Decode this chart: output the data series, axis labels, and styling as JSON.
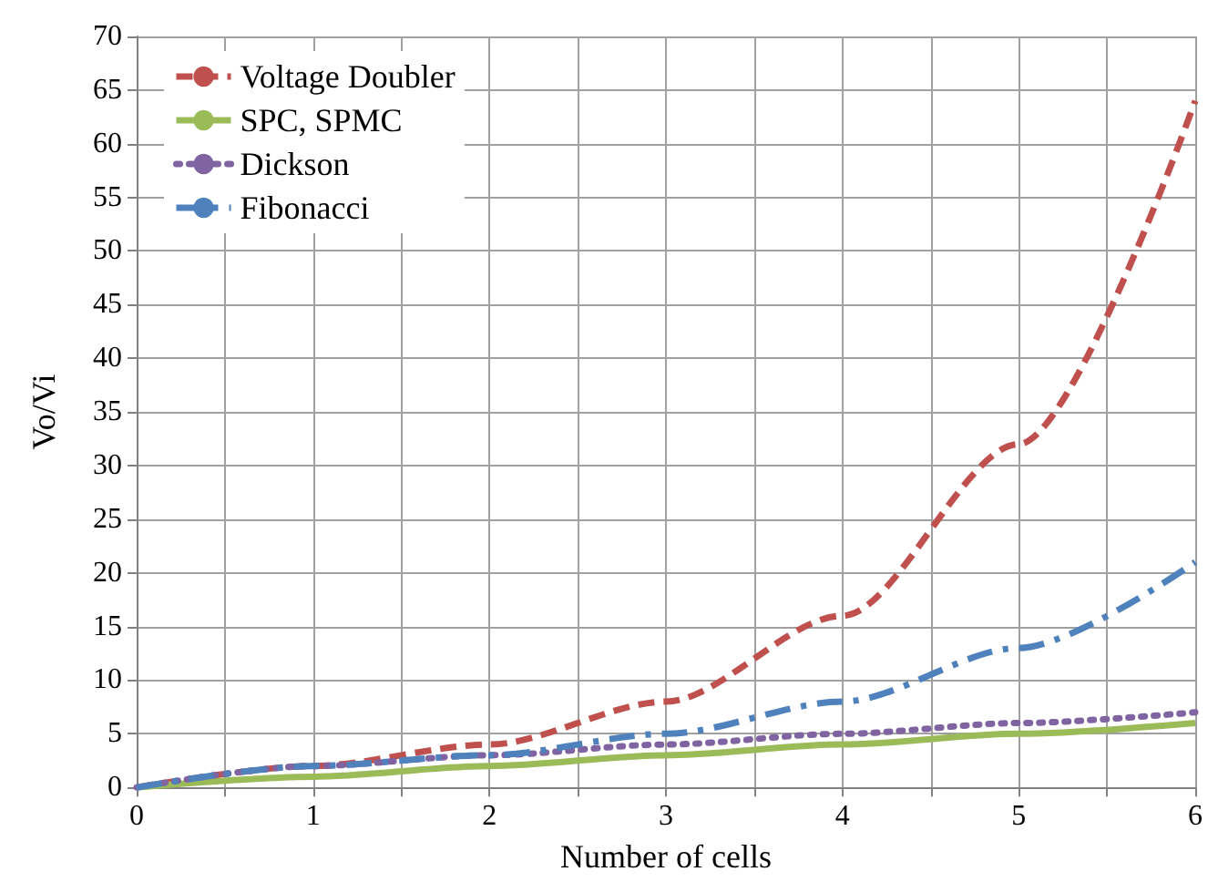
{
  "chart_data": {
    "type": "line",
    "xlabel": "Number of cells",
    "ylabel": "Vo/Vi",
    "x": [
      0,
      1,
      2,
      3,
      4,
      5,
      6
    ],
    "series": [
      {
        "name": "Voltage Doubler",
        "color": "#c0504d",
        "line_style": "dashed",
        "values": [
          0,
          2,
          4,
          8,
          16,
          32,
          64
        ]
      },
      {
        "name": "SPC, SPMC",
        "color": "#9bbb59",
        "line_style": "solid",
        "values": [
          0,
          1,
          2,
          3,
          4,
          5,
          6
        ]
      },
      {
        "name": "Dickson",
        "color": "#8064a2",
        "line_style": "dotted",
        "values": [
          0,
          2,
          3,
          4,
          5,
          6,
          7
        ]
      },
      {
        "name": "Fibonacci",
        "color": "#4f81bd",
        "line_style": "dashdot",
        "values": [
          0,
          2,
          3,
          5,
          8,
          13,
          21
        ]
      }
    ],
    "xlim": [
      0,
      6
    ],
    "xticks": [
      0,
      {
        "value": 0.5,
        "label": null
      },
      1,
      {
        "value": 1.5,
        "label": null
      },
      2,
      {
        "value": 2.5,
        "label": null
      },
      3,
      {
        "value": 3.5,
        "label": null
      },
      4,
      {
        "value": 4.5,
        "label": null
      },
      5,
      {
        "value": 5.5,
        "label": null
      },
      6
    ],
    "ylim": [
      0,
      70
    ],
    "yticks": [
      0,
      5,
      10,
      15,
      20,
      25,
      30,
      35,
      40,
      45,
      50,
      55,
      60,
      65,
      70
    ],
    "grid": true,
    "legend": "top left",
    "marker": "none"
  }
}
